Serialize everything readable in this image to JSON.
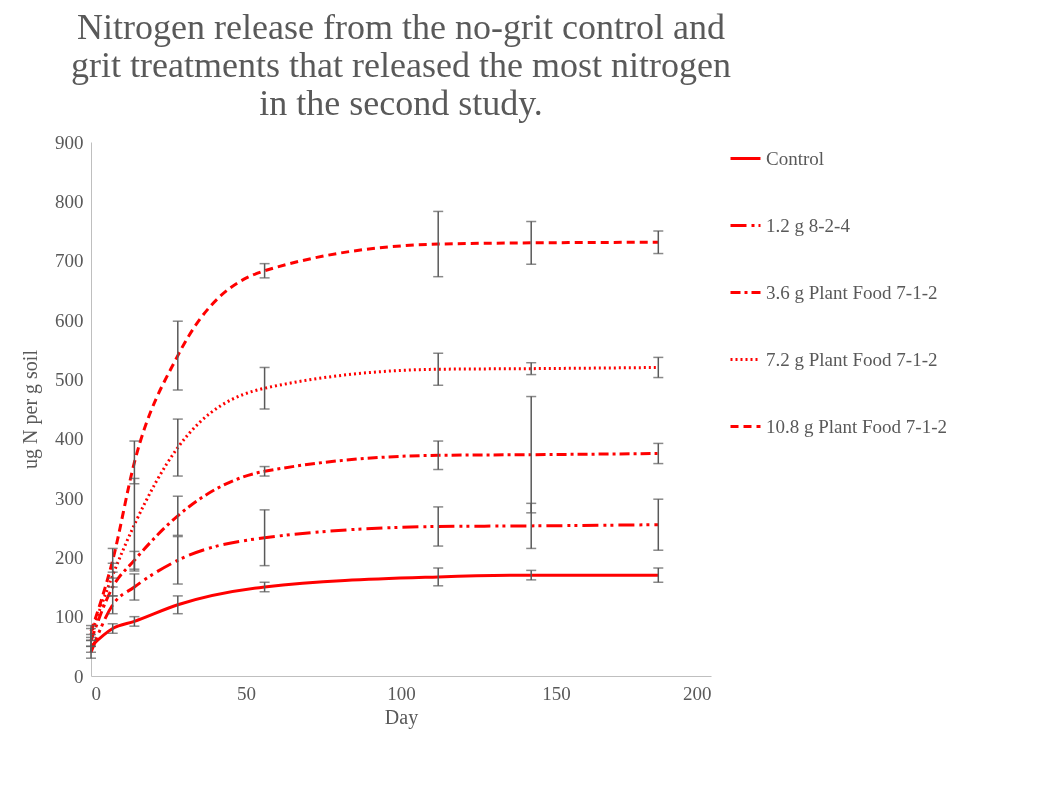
{
  "chart_data": {
    "type": "line",
    "title": "Nitrogen release from the no-grit control and grit treatments that released the most nitrogen in the second study.",
    "xlabel": "Day",
    "ylabel": "ug N per g soil",
    "x": [
      0,
      7,
      14,
      28,
      56,
      112,
      142,
      183
    ],
    "xlim": [
      0,
      200
    ],
    "xticks": [
      0,
      50,
      100,
      150,
      200
    ],
    "ylim": [
      0,
      900
    ],
    "yticks": [
      0,
      100,
      200,
      300,
      400,
      500,
      600,
      700,
      800,
      900
    ],
    "grid": false,
    "legend": "right",
    "marker": "none",
    "series": [
      {
        "name": "Control",
        "color": "#ff0000",
        "line_style": "solid",
        "values": [
          50,
          80,
          92,
          120,
          150,
          167,
          170,
          170
        ],
        "errors": [
          10,
          8,
          8,
          15,
          8,
          15,
          8,
          12
        ]
      },
      {
        "name": "1.2 g 8-2-4",
        "color": "#ff0000",
        "line_style": "dashdotdot",
        "values": [
          40,
          120,
          150,
          195,
          233,
          252,
          253,
          255
        ],
        "errors": [
          10,
          15,
          22,
          40,
          47,
          33,
          38,
          43
        ]
      },
      {
        "name": "3.6 g Plant Food 7-1-2",
        "color": "#ff0000",
        "line_style": "dashdot",
        "values": [
          60,
          150,
          195,
          270,
          345,
          372,
          373,
          375
        ],
        "errors": [
          10,
          15,
          15,
          33,
          8,
          24,
          98,
          17
        ]
      },
      {
        "name": "7.2 g Plant Food 7-1-2",
        "color": "#ff0000",
        "line_style": "dotted",
        "values": [
          70,
          170,
          255,
          385,
          485,
          517,
          518,
          520
        ],
        "errors": [
          10,
          20,
          78,
          48,
          35,
          27,
          10,
          17
        ]
      },
      {
        "name": "10.8 g Plant Food 7-1-2",
        "color": "#ff0000",
        "line_style": "dashed",
        "values": [
          75,
          195,
          360,
          540,
          683,
          728,
          730,
          731
        ],
        "errors": [
          10,
          20,
          36,
          58,
          12,
          55,
          36,
          19
        ]
      }
    ]
  }
}
